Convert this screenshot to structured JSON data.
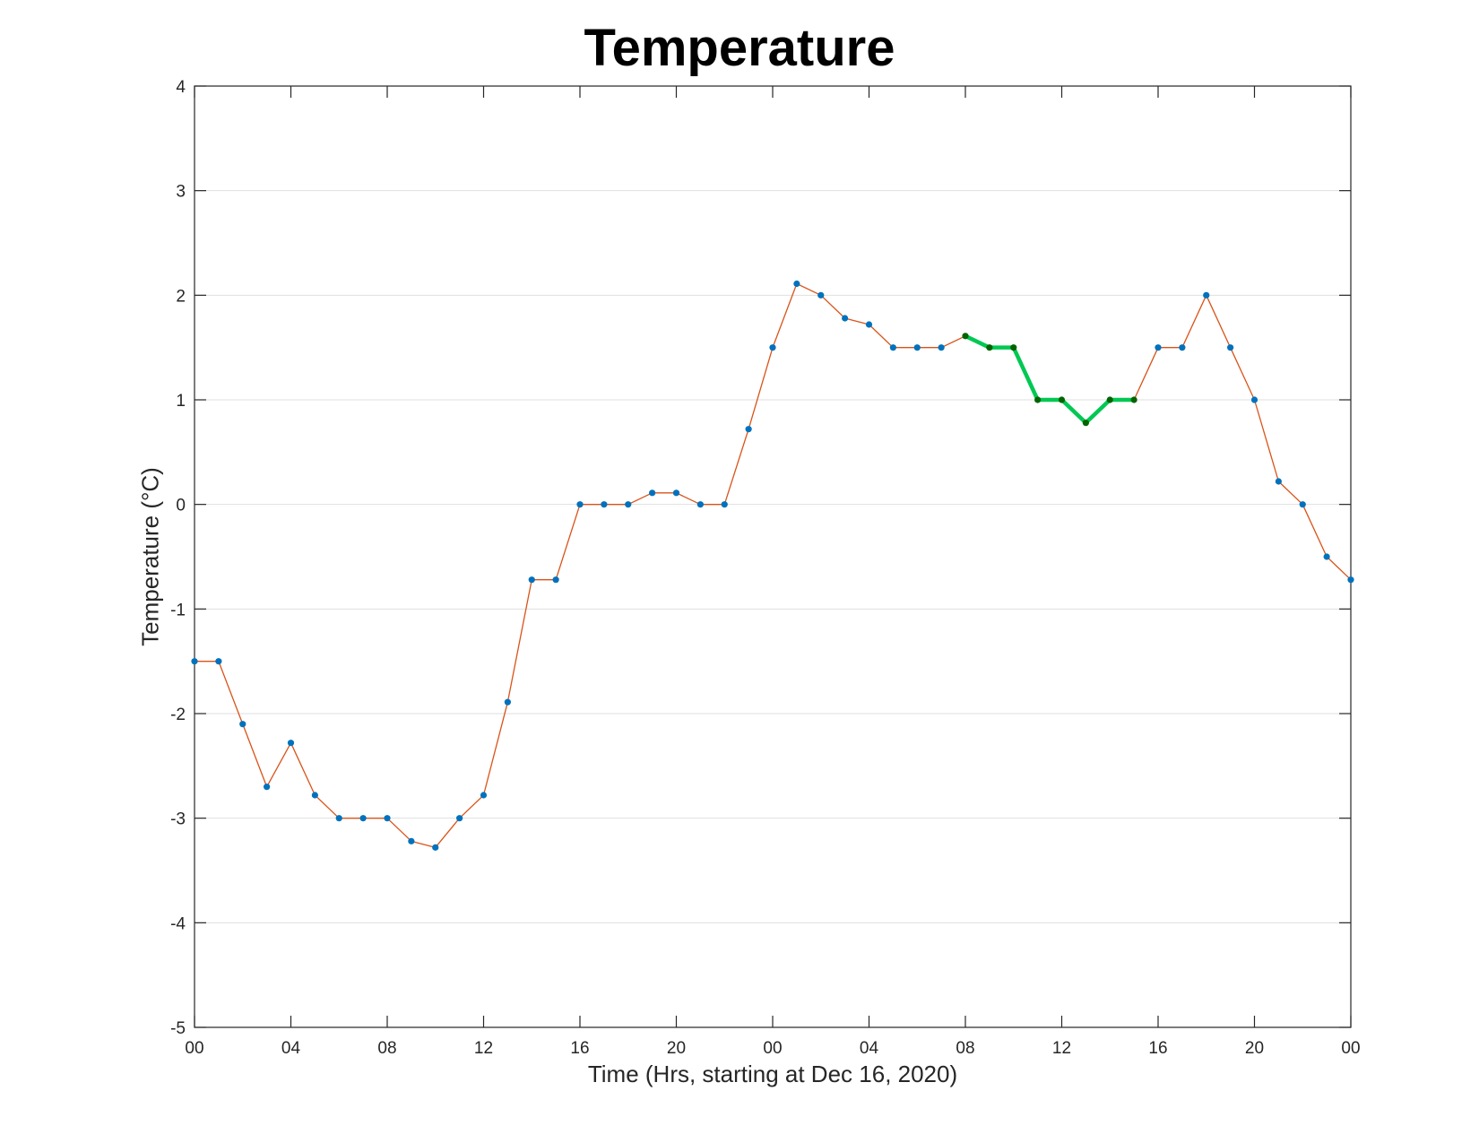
{
  "chart_data": {
    "type": "line",
    "title": "Temperature",
    "xlabel": "Time (Hrs, starting at Dec 16, 2020)",
    "ylabel": "Temperature (°C)",
    "x_start": "2020-12-16 00:00",
    "x_step_hours": 1,
    "xlim_hours": [
      0,
      48
    ],
    "x_tick_hours": [
      0,
      4,
      8,
      12,
      16,
      20,
      24,
      28,
      32,
      36,
      40,
      44,
      48
    ],
    "x_tick_labels": [
      "00",
      "04",
      "08",
      "12",
      "16",
      "20",
      "00",
      "04",
      "08",
      "12",
      "16",
      "20",
      "00"
    ],
    "ylim": [
      -5,
      4
    ],
    "y_ticks": [
      -5,
      -4,
      -3,
      -2,
      -1,
      0,
      1,
      2,
      3,
      4
    ],
    "y_grid": true,
    "x_grid": false,
    "series": [
      {
        "values": [
          -1.5,
          -1.5,
          -2.1,
          -2.7,
          -2.28,
          -2.78,
          -3.0,
          -3.0,
          -3.0,
          -3.22,
          -3.28,
          -3.0,
          -2.78,
          -1.89,
          -0.72,
          -0.72,
          0.0,
          0.0,
          0.0,
          0.11,
          0.11,
          0.0,
          0.0,
          0.72,
          1.5,
          2.11,
          2.0,
          1.78,
          1.72,
          1.5,
          1.5,
          1.5,
          1.61,
          1.5,
          1.5,
          1.0,
          1.0,
          0.78,
          1.0,
          1.0,
          1.5,
          1.5,
          2.0,
          1.5,
          1.0,
          0.22,
          0.0,
          -0.5,
          -0.72
        ],
        "line_color": "#D95319",
        "marker_color": "#0072BD"
      }
    ],
    "highlight": {
      "start_index": 32,
      "end_index": 39,
      "line_color": "#00C853",
      "marker_color": "#006400"
    }
  }
}
